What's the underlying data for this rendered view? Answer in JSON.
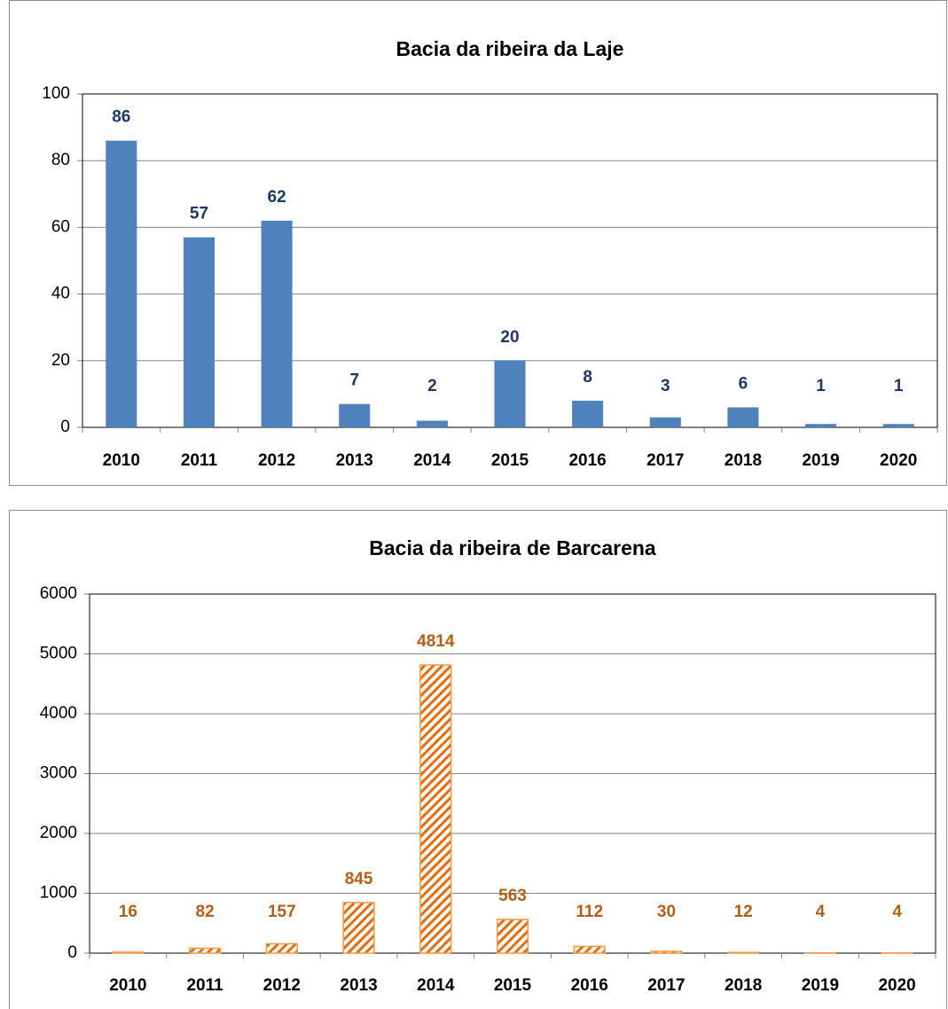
{
  "chart_data": [
    {
      "type": "bar",
      "title": "Bacia da ribeira da Laje",
      "categories": [
        "2010",
        "2011",
        "2012",
        "2013",
        "2014",
        "2015",
        "2016",
        "2017",
        "2018",
        "2019",
        "2020"
      ],
      "values": [
        86,
        57,
        62,
        7,
        2,
        20,
        8,
        3,
        6,
        1,
        1
      ],
      "color": "#4f81bd",
      "label_color": "#1f3864",
      "ylim": [
        0,
        100
      ],
      "yticks": [
        0,
        20,
        40,
        60,
        80,
        100
      ],
      "grid": true
    },
    {
      "type": "bar",
      "title": "Bacia da ribeira de Barcarena",
      "categories": [
        "2010",
        "2011",
        "2012",
        "2013",
        "2014",
        "2015",
        "2016",
        "2017",
        "2018",
        "2019",
        "2020"
      ],
      "values": [
        16,
        82,
        157,
        845,
        4814,
        563,
        112,
        30,
        12,
        4,
        4
      ],
      "color": "#f79646",
      "label_color": "#b45f16",
      "hatch": true,
      "ylim": [
        0,
        6000
      ],
      "yticks": [
        0,
        1000,
        2000,
        3000,
        4000,
        5000,
        6000
      ],
      "grid": true
    }
  ]
}
